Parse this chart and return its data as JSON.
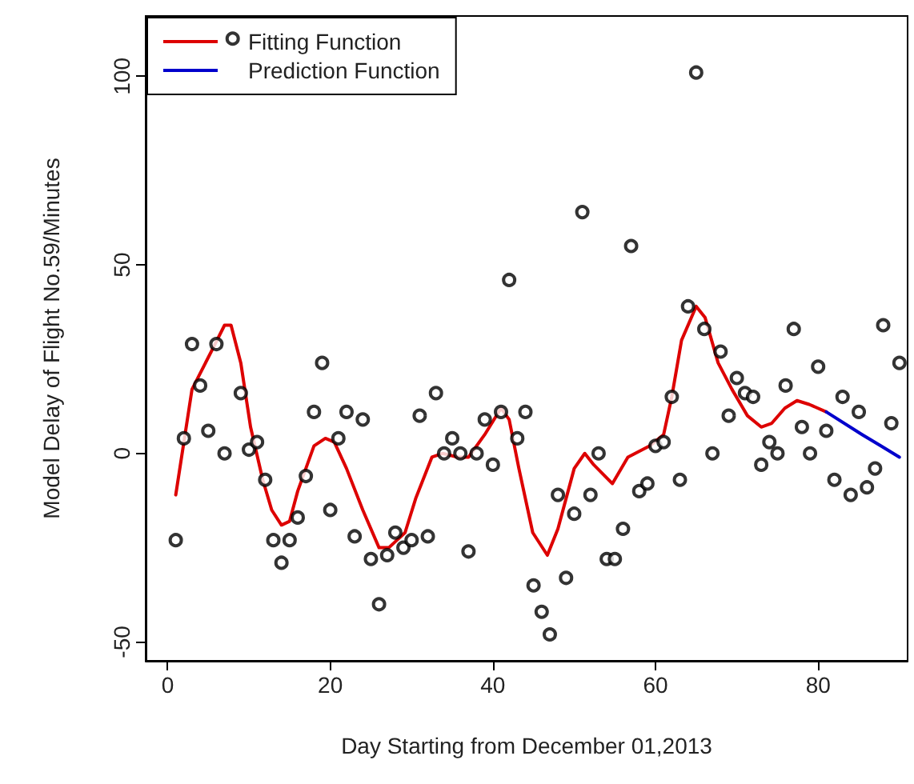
{
  "chart_data": {
    "type": "scatter",
    "xlabel": "Day Starting from December 01,2013",
    "ylabel": "Model Delay of Flight No.59/Minutes",
    "xlim": [
      -2.7,
      91
    ],
    "xticks": [
      0,
      20,
      40,
      60,
      80
    ],
    "ylim": [
      -55,
      116
    ],
    "yticks": [
      -50,
      0,
      50,
      100
    ],
    "grid": false,
    "legend": "top left",
    "series": [
      {
        "marker": "circle",
        "color": "#000000",
        "x": [
          1,
          2,
          3,
          4,
          5,
          6,
          7,
          8,
          9,
          10,
          11,
          12,
          13,
          14,
          15,
          16,
          17,
          18,
          19,
          20,
          21,
          22,
          23,
          24,
          25,
          26,
          27,
          28,
          29,
          30,
          31,
          32,
          33,
          34,
          35,
          36,
          37,
          38,
          39,
          40,
          41,
          42,
          43,
          44,
          45,
          46,
          47,
          48,
          49,
          50,
          51,
          52,
          53,
          54,
          55,
          56,
          57,
          58,
          59,
          60,
          61,
          62,
          63,
          64,
          65,
          66,
          67,
          68,
          69,
          70,
          71,
          72,
          73,
          74,
          75,
          76,
          77,
          78,
          79,
          80,
          81,
          82,
          83,
          84,
          85,
          86,
          87,
          88,
          89,
          90
        ],
        "values": [
          -23,
          4,
          29,
          18,
          6,
          29,
          0,
          110,
          16,
          1,
          3,
          -7,
          -23,
          -29,
          -23,
          -17,
          -6,
          11,
          24,
          -15,
          4,
          11,
          -22,
          9,
          -28,
          -40,
          -27,
          -21,
          -25,
          -23,
          10,
          -22,
          16,
          0,
          4,
          0,
          -26,
          0,
          9,
          -3,
          11,
          46,
          4,
          11,
          -35,
          -42,
          -48,
          -11,
          -33,
          -16,
          64,
          -11,
          0,
          -28,
          -28,
          -20,
          55,
          -10,
          -8,
          2,
          3,
          15,
          -7,
          39,
          101,
          33,
          0,
          27,
          10,
          20,
          16,
          15,
          -3,
          3,
          0,
          18,
          33,
          7,
          0,
          23,
          6,
          -7,
          15,
          -11,
          11,
          -9,
          -4,
          34,
          8,
          24
        ]
      },
      {
        "type": "line",
        "name": "Fitting Function",
        "marker": "none",
        "color": "#dd0000",
        "x": [
          1,
          3,
          5.6,
          7,
          7.8,
          9,
          10.2,
          11.7,
          12.8,
          14,
          15,
          16,
          18,
          19.4,
          20.5,
          22,
          24,
          26,
          27.2,
          29.2,
          30.5,
          32.5,
          33.8,
          35.7,
          37,
          39,
          41,
          42,
          43.2,
          44.9,
          46.7,
          48,
          50,
          51.3,
          52.4,
          54.7,
          56.6,
          59.3,
          61,
          62,
          63.2,
          65,
          66.1,
          67.7,
          69.4,
          71.3,
          73,
          74.3,
          75.9,
          77.4,
          78.9,
          81
        ],
        "values": [
          -11,
          17,
          28,
          34,
          34,
          24,
          7,
          -7,
          -15,
          -19,
          -18,
          -10,
          2,
          4,
          3,
          -4,
          -15,
          -25,
          -25,
          -21,
          -12,
          -1,
          0,
          -1,
          -1,
          5,
          12,
          9,
          -4,
          -21,
          -27,
          -20,
          -4,
          0,
          -3,
          -8,
          -1,
          2,
          5,
          15,
          30,
          39,
          36,
          24,
          17,
          10,
          7,
          8,
          12,
          14,
          13,
          11
        ]
      },
      {
        "type": "line",
        "name": "Prediction Function",
        "marker": "none",
        "color": "#0000cc",
        "x": [
          81,
          85.4,
          87.7,
          90
        ],
        "values": [
          11,
          5,
          2,
          -1
        ]
      }
    ]
  }
}
